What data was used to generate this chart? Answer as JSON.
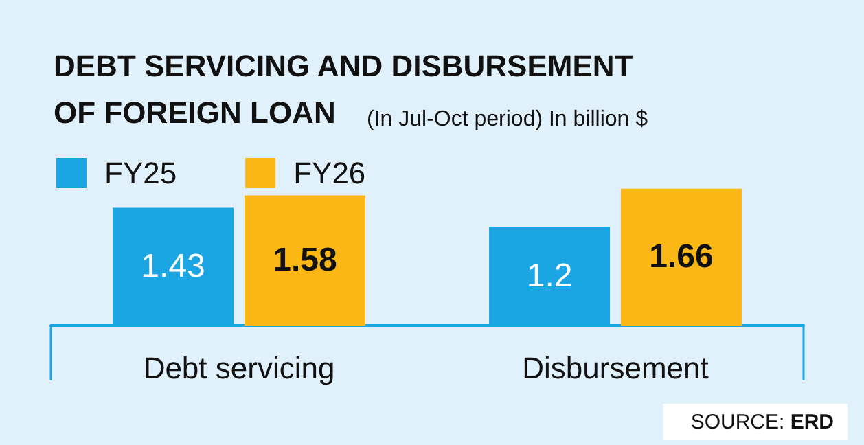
{
  "chart_data": {
    "type": "bar",
    "title": "DEBT SERVICING AND DISBURSEMENT OF FOREIGN LOAN",
    "subtitle": "(In Jul-Oct period) In billion $",
    "categories": [
      "Debt servicing",
      "Disbursement"
    ],
    "series": [
      {
        "name": "FY25",
        "color": "#1ba5e3",
        "values": [
          1.43,
          1.2
        ]
      },
      {
        "name": "FY26",
        "color": "#fbb716",
        "values": [
          1.58,
          1.66
        ]
      }
    ],
    "data_labels": true,
    "legend": "top left",
    "grid": false,
    "annotations": [
      "SOURCE: ERD"
    ]
  }
}
